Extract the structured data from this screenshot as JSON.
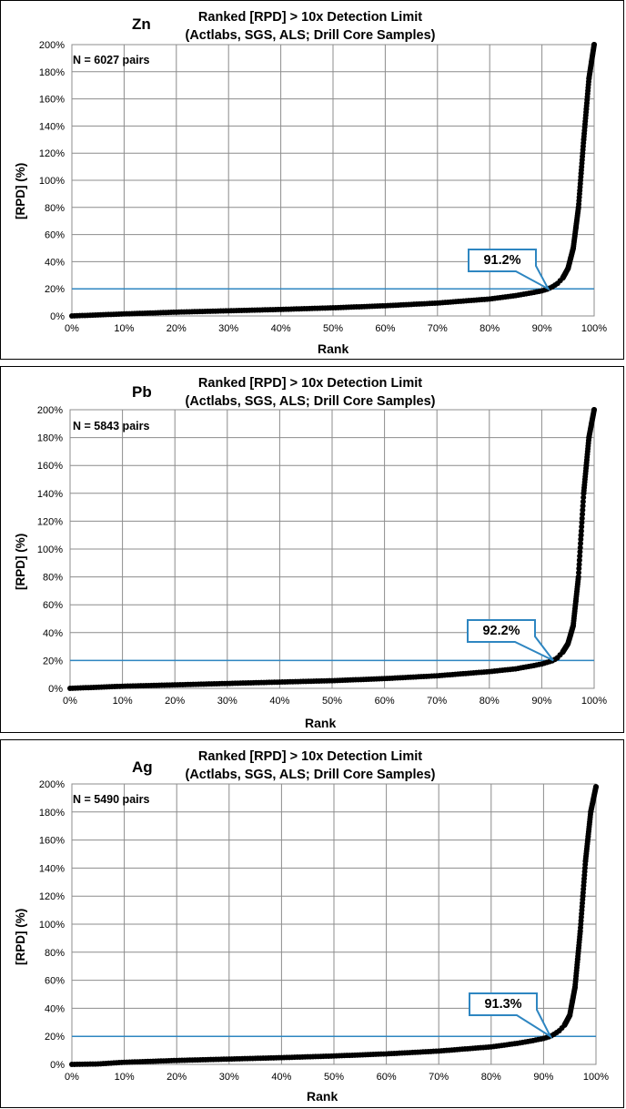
{
  "chart_data": [
    {
      "type": "scatter",
      "element": "Zn",
      "title": [
        "Ranked [RPD] > 10x Detection Limit",
        "(Actlabs, SGS, ALS; Drill Core Samples)"
      ],
      "n_label": "N = 6027 pairs",
      "xlabel": "Rank",
      "ylabel": "[RPD] (%)",
      "x_ticks": [
        "0%",
        "10%",
        "20%",
        "30%",
        "40%",
        "50%",
        "60%",
        "70%",
        "80%",
        "90%",
        "100%"
      ],
      "y_ticks": [
        "0%",
        "20%",
        "40%",
        "60%",
        "80%",
        "100%",
        "120%",
        "140%",
        "160%",
        "180%",
        "200%"
      ],
      "xlim": [
        0,
        100
      ],
      "ylim": [
        0,
        200
      ],
      "grid": true,
      "threshold_line": 20,
      "threshold_color": "#2e86c1",
      "callout": "91.2%",
      "callout_x": 91.2,
      "series_color": "#000000",
      "curve": [
        [
          0,
          0
        ],
        [
          10,
          1.5
        ],
        [
          20,
          2.8
        ],
        [
          30,
          3.8
        ],
        [
          40,
          4.8
        ],
        [
          50,
          6
        ],
        [
          60,
          7.5
        ],
        [
          70,
          9.5
        ],
        [
          80,
          12.5
        ],
        [
          85,
          15
        ],
        [
          88,
          17
        ],
        [
          90,
          18.5
        ],
        [
          91.2,
          20
        ],
        [
          92,
          21.5
        ],
        [
          93,
          24
        ],
        [
          94,
          28
        ],
        [
          95,
          35
        ],
        [
          96,
          50
        ],
        [
          97,
          80
        ],
        [
          98,
          130
        ],
        [
          99,
          175
        ],
        [
          100,
          200
        ]
      ]
    },
    {
      "type": "scatter",
      "element": "Pb",
      "title": [
        "Ranked [RPD] > 10x Detection Limit",
        "(Actlabs, SGS, ALS; Drill Core Samples)"
      ],
      "n_label": "N = 5843 pairs",
      "xlabel": "Rank",
      "ylabel": "[RPD] (%)",
      "x_ticks": [
        "0%",
        "10%",
        "20%",
        "30%",
        "40%",
        "50%",
        "60%",
        "70%",
        "80%",
        "90%",
        "100%"
      ],
      "y_ticks": [
        "0%",
        "20%",
        "40%",
        "60%",
        "80%",
        "100%",
        "120%",
        "140%",
        "160%",
        "180%",
        "200%"
      ],
      "xlim": [
        0,
        100
      ],
      "ylim": [
        0,
        200
      ],
      "grid": true,
      "threshold_line": 20,
      "threshold_color": "#2e86c1",
      "callout": "92.2%",
      "callout_x": 92.2,
      "series_color": "#000000",
      "curve": [
        [
          0,
          0
        ],
        [
          10,
          1.5
        ],
        [
          20,
          2.5
        ],
        [
          30,
          3.5
        ],
        [
          40,
          4.5
        ],
        [
          50,
          5.5
        ],
        [
          60,
          7
        ],
        [
          70,
          9
        ],
        [
          80,
          12
        ],
        [
          85,
          14
        ],
        [
          88,
          16
        ],
        [
          90,
          17.5
        ],
        [
          92.2,
          20
        ],
        [
          93,
          22
        ],
        [
          94,
          26
        ],
        [
          95,
          32
        ],
        [
          96,
          45
        ],
        [
          97,
          80
        ],
        [
          98,
          140
        ],
        [
          99,
          180
        ],
        [
          100,
          200
        ]
      ]
    },
    {
      "type": "scatter",
      "element": "Ag",
      "title": [
        "Ranked [RPD] > 10x Detection Limit",
        "(Actlabs, SGS, ALS; Drill Core Samples)"
      ],
      "n_label": "N = 5490 pairs",
      "xlabel": "Rank",
      "ylabel": "[RPD] (%)",
      "x_ticks": [
        "0%",
        "10%",
        "20%",
        "30%",
        "40%",
        "50%",
        "60%",
        "70%",
        "80%",
        "90%",
        "100%"
      ],
      "y_ticks": [
        "0%",
        "20%",
        "40%",
        "60%",
        "80%",
        "100%",
        "120%",
        "140%",
        "160%",
        "180%",
        "200%"
      ],
      "xlim": [
        0,
        100
      ],
      "ylim": [
        0,
        200
      ],
      "grid": true,
      "threshold_line": 20,
      "threshold_color": "#2e86c1",
      "callout": "91.3%",
      "callout_x": 91.3,
      "series_color": "#000000",
      "curve": [
        [
          0,
          0
        ],
        [
          5,
          0.3
        ],
        [
          10,
          1.5
        ],
        [
          20,
          2.8
        ],
        [
          30,
          3.8
        ],
        [
          40,
          4.8
        ],
        [
          50,
          6
        ],
        [
          60,
          7.5
        ],
        [
          70,
          9.5
        ],
        [
          80,
          12.5
        ],
        [
          85,
          15
        ],
        [
          88,
          17
        ],
        [
          90,
          18.5
        ],
        [
          91.3,
          20
        ],
        [
          92,
          21.5
        ],
        [
          93,
          24
        ],
        [
          94,
          28
        ],
        [
          95,
          35
        ],
        [
          96,
          55
        ],
        [
          97,
          95
        ],
        [
          98,
          145
        ],
        [
          99,
          180
        ],
        [
          100,
          198
        ]
      ]
    }
  ]
}
